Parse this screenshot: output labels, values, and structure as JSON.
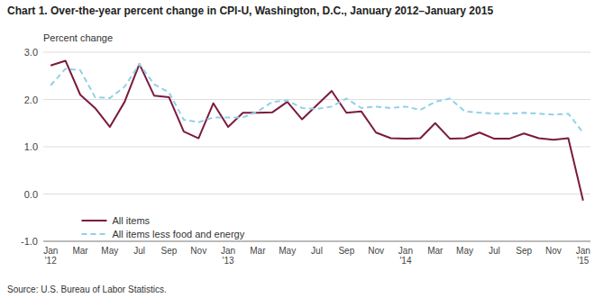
{
  "chart_data": {
    "type": "line",
    "title": "Chart 1. Over-the-year percent change in CPI-U,  Washington, D.C., January 2012–January 2015",
    "y_label": "Percent change",
    "source": "Source: U.S. Bureau of Labor Statistics.",
    "categories": [
      "Jan\n'12",
      null,
      "Mar",
      null,
      "May",
      null,
      "Jul",
      null,
      "Sep",
      null,
      "Nov",
      null,
      "Jan\n'13",
      null,
      "Mar",
      null,
      "May",
      null,
      "Jul",
      null,
      "Sep",
      null,
      "Nov",
      null,
      "Jan\n'14",
      null,
      "Mar",
      null,
      "May",
      null,
      "Jul",
      null,
      "Sep",
      null,
      "Nov",
      null,
      "Jan\n'15"
    ],
    "series": [
      {
        "name": "All items",
        "color": "#7b1a3e",
        "line_style": "solid",
        "values": [
          2.72,
          2.82,
          2.1,
          1.82,
          1.42,
          1.95,
          2.75,
          2.08,
          2.05,
          1.32,
          1.18,
          1.92,
          1.42,
          1.72,
          1.72,
          1.73,
          1.95,
          1.58,
          1.88,
          2.18,
          1.72,
          1.75,
          1.3,
          1.18,
          1.17,
          1.18,
          1.5,
          1.17,
          1.18,
          1.3,
          1.17,
          1.17,
          1.28,
          1.18,
          1.15,
          1.18,
          -0.14
        ]
      },
      {
        "name": "All items less food and energy",
        "color": "#92d0e8",
        "line_style": "dashed",
        "values": [
          2.3,
          2.65,
          2.62,
          2.05,
          2.03,
          2.27,
          2.75,
          2.32,
          2.15,
          1.57,
          1.52,
          1.62,
          1.62,
          1.62,
          1.75,
          1.95,
          1.98,
          1.82,
          1.8,
          1.85,
          2.02,
          1.82,
          1.85,
          1.82,
          1.85,
          1.78,
          1.95,
          2.02,
          1.75,
          1.72,
          1.7,
          1.7,
          1.72,
          1.7,
          1.68,
          1.7,
          1.3
        ]
      }
    ],
    "ylim": [
      -1.0,
      3.0
    ],
    "yticks": [
      {
        "value": -1.0,
        "label": "-1.0"
      },
      {
        "value": 0.0,
        "label": "0.0"
      },
      {
        "value": 1.0,
        "label": "1.0"
      },
      {
        "value": 2.0,
        "label": "2.0"
      },
      {
        "value": 3.0,
        "label": "3.0"
      }
    ],
    "grid": true,
    "legend": "lower left"
  }
}
